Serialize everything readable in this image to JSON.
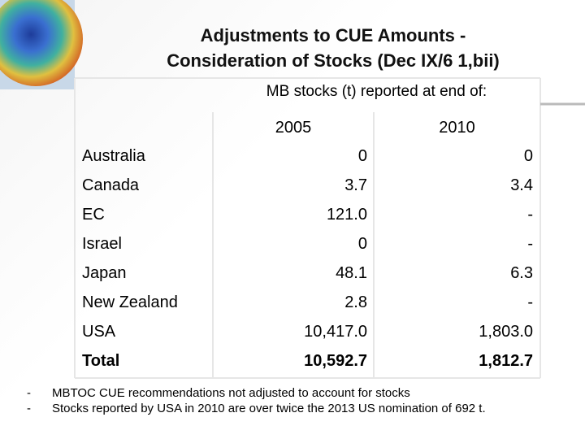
{
  "header": {
    "title_lines": [
      "Adjustments to CUE Amounts -",
      "Consideration of Stocks (Dec IX/6 1,bii)"
    ]
  },
  "table": {
    "caption": "MB stocks (t) reported at end of:",
    "columns": [
      "2005",
      "2010"
    ],
    "rows": [
      [
        "Australia",
        "0",
        "0"
      ],
      [
        "Canada",
        "3.7",
        "3.4"
      ],
      [
        "EC",
        "121.0",
        "-"
      ],
      [
        "Israel",
        "0",
        "-"
      ],
      [
        "Japan",
        "48.1",
        "6.3"
      ],
      [
        "New Zealand",
        "2.8",
        "-"
      ],
      [
        "USA",
        "10,417.0",
        "1,803.0"
      ],
      [
        "Total",
        "10,592.7",
        "1,812.7"
      ]
    ]
  },
  "notes": [
    {
      "bullet": "-",
      "text": "MBTOC CUE recommendations not adjusted to account for stocks"
    },
    {
      "bullet": "-",
      "text": "Stocks reported by USA in 2010 are over twice the 2013 US nomination of 692 t."
    }
  ]
}
